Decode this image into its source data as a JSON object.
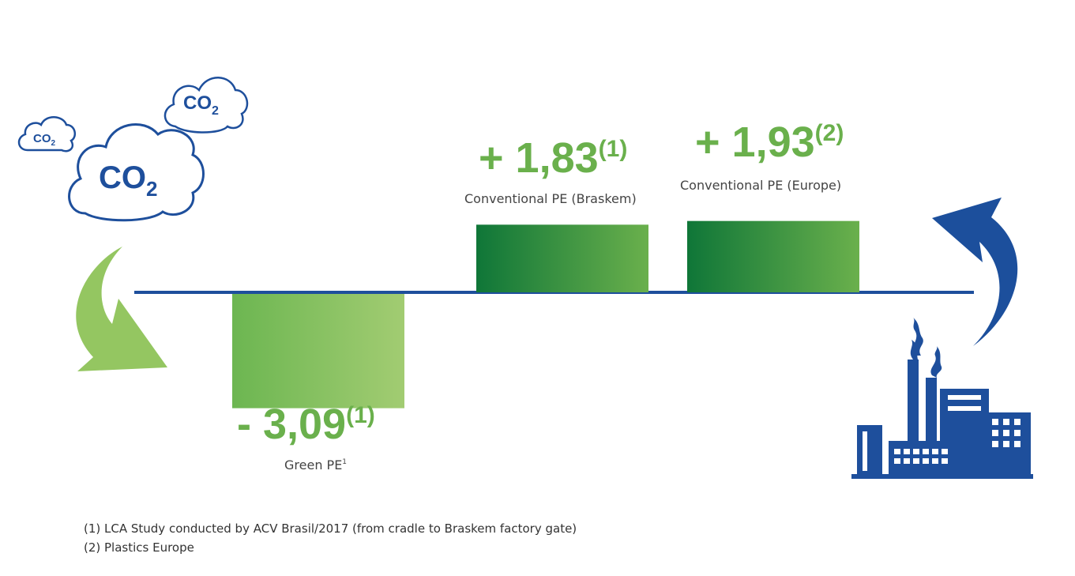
{
  "chart_data": {
    "type": "bar",
    "categories": [
      "Green PE",
      "Conventional PE (Braskem)",
      "Conventional PE (Europe)"
    ],
    "values": [
      -3.09,
      1.83,
      1.93
    ],
    "value_labels": [
      "- 3,09",
      "+ 1,83",
      "+ 1,93"
    ],
    "value_notes": [
      "(1)",
      "(1)",
      "(2)"
    ],
    "category_notes": [
      "1",
      "",
      ""
    ],
    "ylim": [
      -3.09,
      1.93
    ],
    "grid": false,
    "colors": {
      "negative_bar": [
        "#6cb651",
        "#a2cc72"
      ],
      "positive_bar": [
        "#0f7638",
        "#6ab04c"
      ],
      "value_text": "#6ab04c",
      "axis": "#1e4f9c"
    }
  },
  "illustrations": {
    "co2_clouds": {
      "label": "CO",
      "subscript": "2",
      "color": "#1e4f9c"
    },
    "absorb_arrow_color": "#94c661",
    "emit_arrow_color": "#1c4f9c",
    "factory_color": "#1e4f9c"
  },
  "footnotes": [
    "(1) LCA Study conducted by ACV Brasil/2017 (from cradle to Braskem factory gate)",
    "(2) Plastics Europe"
  ]
}
